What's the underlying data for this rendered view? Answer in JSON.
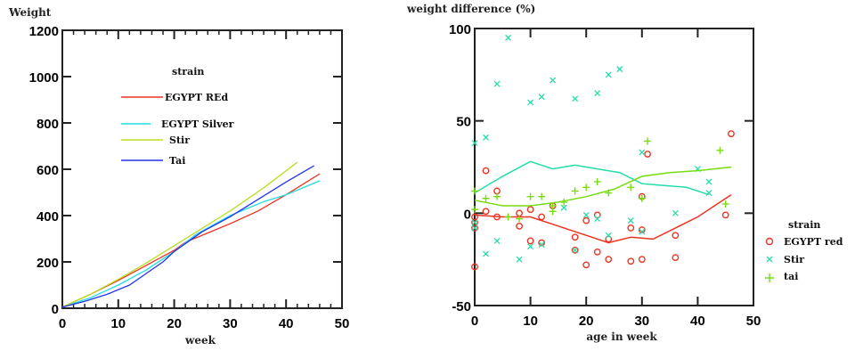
{
  "chart_data": [
    {
      "type": "line",
      "title": "",
      "ylabel": "Weight",
      "xlabel": "week",
      "xlim": [
        0,
        50
      ],
      "ylim": [
        0,
        1200
      ],
      "xticks": [
        0,
        10,
        20,
        30,
        40,
        50
      ],
      "yticks": [
        0,
        200,
        400,
        600,
        800,
        1000,
        1200
      ],
      "grid": false,
      "legend": {
        "title": "strain",
        "placement": "top-center"
      },
      "series": [
        {
          "name": "EGYPT REd",
          "color": "#ee3322",
          "x": [
            0,
            5,
            10,
            15,
            20,
            22,
            26,
            30,
            35,
            40,
            46
          ],
          "y": [
            5,
            60,
            120,
            185,
            250,
            285,
            325,
            365,
            420,
            490,
            580
          ]
        },
        {
          "name": "EGYPT  Silver",
          "color": "#22dddd",
          "x": [
            0,
            5,
            10,
            15,
            20,
            24,
            30,
            36,
            40,
            46
          ],
          "y": [
            5,
            45,
            100,
            165,
            245,
            320,
            400,
            460,
            490,
            550
          ]
        },
        {
          "name": "Stir",
          "color": "#bbdd22",
          "x": [
            0,
            5,
            10,
            15,
            20,
            25,
            30,
            36,
            42
          ],
          "y": [
            5,
            60,
            125,
            195,
            270,
            345,
            420,
            520,
            630
          ]
        },
        {
          "name": "Tai",
          "color": "#2233ee",
          "x": [
            0,
            4,
            8,
            12,
            15,
            18,
            20,
            25,
            30,
            35,
            40,
            45
          ],
          "y": [
            5,
            30,
            60,
            100,
            150,
            200,
            245,
            330,
            395,
            470,
            545,
            615
          ]
        }
      ]
    },
    {
      "type": "scatter",
      "title": "",
      "ylabel": "weight difference (%)",
      "xlabel": "age in week",
      "xlim": [
        0,
        50
      ],
      "ylim": [
        -50,
        100
      ],
      "xticks": [
        0,
        10,
        20,
        30,
        40,
        50
      ],
      "yticks": [
        -50,
        0,
        50,
        100
      ],
      "grid": false,
      "legend": {
        "title": "strain",
        "placement": "right"
      },
      "series": [
        {
          "name": "EGYPT red",
          "marker": "circle",
          "color": "#ee3322",
          "points": [
            [
              0,
              -29
            ],
            [
              0,
              -2
            ],
            [
              0,
              -5
            ],
            [
              0,
              -8
            ],
            [
              2,
              23
            ],
            [
              2,
              1
            ],
            [
              4,
              -2
            ],
            [
              4,
              12
            ],
            [
              8,
              0
            ],
            [
              8,
              -7
            ],
            [
              10,
              2
            ],
            [
              10,
              -15
            ],
            [
              12,
              -2
            ],
            [
              12,
              -16
            ],
            [
              14,
              4
            ],
            [
              18,
              -13
            ],
            [
              18,
              -20
            ],
            [
              20,
              -4
            ],
            [
              20,
              -28
            ],
            [
              22,
              -1
            ],
            [
              22,
              -21
            ],
            [
              24,
              -14
            ],
            [
              24,
              -25
            ],
            [
              28,
              -8
            ],
            [
              28,
              -26
            ],
            [
              30,
              -9
            ],
            [
              30,
              -25
            ],
            [
              30,
              9
            ],
            [
              31,
              32
            ],
            [
              36,
              -12
            ],
            [
              36,
              -24
            ],
            [
              45,
              -1
            ],
            [
              46,
              43
            ]
          ],
          "trend": {
            "x": [
              0,
              5,
              10,
              15,
              20,
              24,
              28,
              32,
              36,
              40,
              46
            ],
            "y": [
              -1,
              -2,
              -2,
              -7,
              -12,
              -16,
              -13,
              -14,
              -8,
              -2,
              10
            ]
          }
        },
        {
          "name": "Stir",
          "marker": "x",
          "color": "#22ddaa",
          "points": [
            [
              0,
              38
            ],
            [
              2,
              41
            ],
            [
              4,
              70
            ],
            [
              6,
              95
            ],
            [
              10,
              60
            ],
            [
              12,
              63
            ],
            [
              14,
              72
            ],
            [
              18,
              62
            ],
            [
              22,
              65
            ],
            [
              24,
              75
            ],
            [
              26,
              78
            ],
            [
              30,
              33
            ],
            [
              40,
              24
            ],
            [
              42,
              17
            ],
            [
              42,
              11
            ],
            [
              0,
              -5
            ],
            [
              0,
              -8
            ],
            [
              2,
              -22
            ],
            [
              4,
              -15
            ],
            [
              8,
              -25
            ],
            [
              10,
              -18
            ],
            [
              12,
              -17
            ],
            [
              16,
              3
            ],
            [
              18,
              -20
            ],
            [
              20,
              -1
            ],
            [
              22,
              -3
            ],
            [
              24,
              -12
            ],
            [
              28,
              -4
            ],
            [
              30,
              -10
            ],
            [
              36,
              0
            ]
          ],
          "trend": {
            "x": [
              0,
              5,
              10,
              14,
              18,
              22,
              26,
              30,
              34,
              38,
              42
            ],
            "y": [
              11,
              20,
              28,
              24,
              26,
              24,
              22,
              16,
              15,
              14,
              10
            ]
          }
        },
        {
          "name": "tai",
          "marker": "plus",
          "color": "#77dd11",
          "points": [
            [
              0,
              12
            ],
            [
              0,
              2
            ],
            [
              2,
              8
            ],
            [
              4,
              9
            ],
            [
              6,
              -2
            ],
            [
              8,
              -3
            ],
            [
              10,
              9
            ],
            [
              12,
              9
            ],
            [
              14,
              1
            ],
            [
              14,
              4
            ],
            [
              16,
              6
            ],
            [
              18,
              12
            ],
            [
              20,
              14
            ],
            [
              22,
              17
            ],
            [
              24,
              11
            ],
            [
              28,
              14
            ],
            [
              30,
              8
            ],
            [
              31,
              39
            ],
            [
              44,
              34
            ],
            [
              45,
              5
            ]
          ],
          "trend": {
            "x": [
              0,
              5,
              10,
              15,
              20,
              25,
              30,
              35,
              40,
              46
            ],
            "y": [
              7,
              4,
              4,
              6,
              9,
              13,
              20,
              22,
              23,
              25
            ]
          }
        }
      ]
    }
  ]
}
